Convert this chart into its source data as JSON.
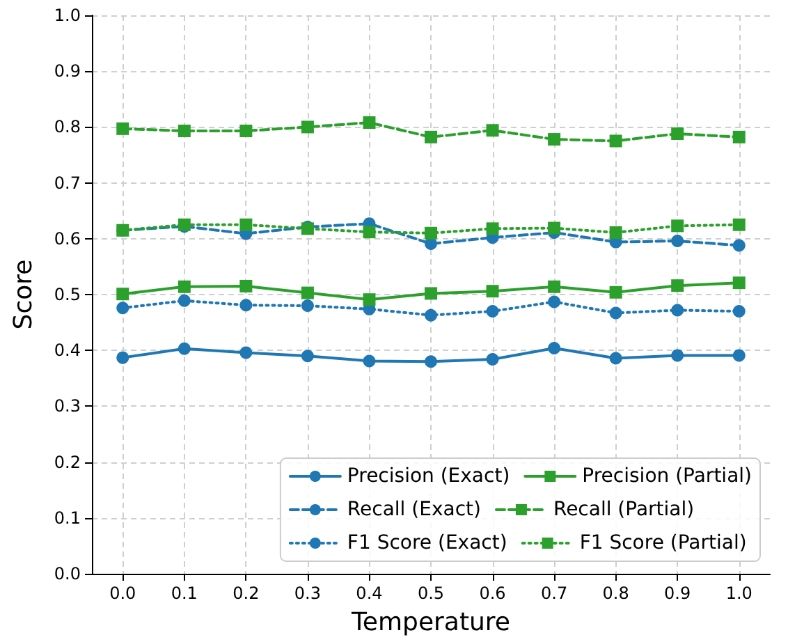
{
  "chart_data": {
    "type": "line",
    "xlabel": "Temperature",
    "ylabel": "Score",
    "x": [
      0.0,
      0.1,
      0.2,
      0.3,
      0.4,
      0.5,
      0.6,
      0.7,
      0.8,
      0.9,
      1.0
    ],
    "xlim": [
      -0.05,
      1.05
    ],
    "xticks": [
      {
        "value": 0,
        "label": "0.0"
      },
      {
        "value": 0.1,
        "label": "0.1"
      },
      {
        "value": 0.2,
        "label": "0.2"
      },
      {
        "value": 0.3,
        "label": "0.3"
      },
      {
        "value": 0.4,
        "label": "0.4"
      },
      {
        "value": 0.5,
        "label": "0.5"
      },
      {
        "value": 0.6,
        "label": "0.6"
      },
      {
        "value": 0.7,
        "label": "0.7"
      },
      {
        "value": 0.8,
        "label": "0.8"
      },
      {
        "value": 0.9,
        "label": "0.9"
      },
      {
        "value": 1,
        "label": "1.0"
      }
    ],
    "ylim": [
      0,
      1
    ],
    "yticks": [
      {
        "value": 0,
        "label": "0.0"
      },
      {
        "value": 0.1,
        "label": "0.1"
      },
      {
        "value": 0.2,
        "label": "0.2"
      },
      {
        "value": 0.3,
        "label": "0.3"
      },
      {
        "value": 0.4,
        "label": "0.4"
      },
      {
        "value": 0.5,
        "label": "0.5"
      },
      {
        "value": 0.6,
        "label": "0.6"
      },
      {
        "value": 0.7,
        "label": "0.7"
      },
      {
        "value": 0.8,
        "label": "0.8"
      },
      {
        "value": 0.9,
        "label": "0.9"
      },
      {
        "value": 1,
        "label": "1.0"
      }
    ],
    "grid": true,
    "legend": "bottom right",
    "series": [
      {
        "name": "Precision (Exact)",
        "color": "#1f77b4",
        "marker": "circle",
        "line_style": "solid",
        "values": [
          0.387,
          0.403,
          0.396,
          0.39,
          0.381,
          0.38,
          0.384,
          0.404,
          0.386,
          0.391,
          0.391
        ]
      },
      {
        "name": "Recall (Exact)",
        "color": "#1f77b4",
        "marker": "circle",
        "line_style": "dashed",
        "values": [
          0.615,
          0.622,
          0.609,
          0.621,
          0.627,
          0.591,
          0.602,
          0.611,
          0.594,
          0.596,
          0.588
        ]
      },
      {
        "name": "F1 Score (Exact)",
        "color": "#1f77b4",
        "marker": "circle",
        "line_style": "dotted",
        "values": [
          0.476,
          0.489,
          0.481,
          0.48,
          0.474,
          0.463,
          0.47,
          0.487,
          0.467,
          0.472,
          0.47
        ]
      },
      {
        "name": "Precision (Partial)",
        "color": "#2ca02c",
        "marker": "square",
        "line_style": "solid",
        "values": [
          0.501,
          0.514,
          0.515,
          0.503,
          0.491,
          0.502,
          0.506,
          0.514,
          0.504,
          0.516,
          0.521
        ]
      },
      {
        "name": "Recall (Partial)",
        "color": "#2ca02c",
        "marker": "square",
        "line_style": "dashed",
        "values": [
          0.797,
          0.793,
          0.793,
          0.8,
          0.808,
          0.782,
          0.794,
          0.778,
          0.775,
          0.788,
          0.782
        ]
      },
      {
        "name": "F1 Score (Partial)",
        "color": "#2ca02c",
        "marker": "square",
        "line_style": "dotted",
        "values": [
          0.615,
          0.625,
          0.625,
          0.618,
          0.612,
          0.61,
          0.618,
          0.619,
          0.611,
          0.623,
          0.625
        ]
      }
    ]
  }
}
